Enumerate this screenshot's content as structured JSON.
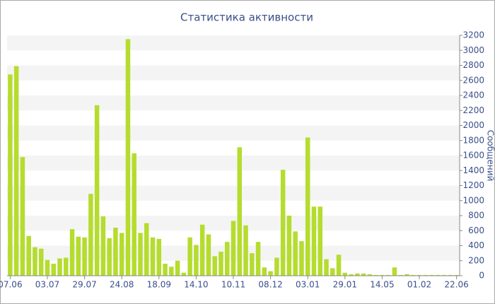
{
  "chart_data": {
    "type": "bar",
    "title": "Статистика активности",
    "y_label": "Сообщений",
    "categories": [
      "07.06",
      null,
      null,
      null,
      null,
      null,
      "03.07",
      null,
      null,
      null,
      null,
      null,
      "29.07",
      null,
      null,
      null,
      null,
      null,
      "24.08",
      null,
      null,
      null,
      null,
      null,
      "18.09",
      null,
      null,
      null,
      null,
      null,
      "14.10",
      null,
      null,
      null,
      null,
      null,
      "10.11",
      null,
      null,
      null,
      null,
      null,
      "08.12",
      null,
      null,
      null,
      null,
      null,
      "03.01",
      null,
      null,
      null,
      null,
      null,
      "29.01",
      null,
      null,
      null,
      null,
      null,
      "14.05",
      null,
      null,
      null,
      null,
      null,
      "01.02",
      null,
      null,
      null,
      null,
      null,
      "22.06"
    ],
    "values": [
      2680,
      2790,
      1580,
      530,
      380,
      360,
      210,
      160,
      230,
      240,
      620,
      520,
      510,
      1090,
      2270,
      790,
      500,
      640,
      570,
      3150,
      1630,
      570,
      700,
      510,
      490,
      160,
      120,
      200,
      40,
      510,
      410,
      680,
      550,
      260,
      320,
      450,
      730,
      1710,
      670,
      300,
      450,
      110,
      60,
      240,
      1410,
      800,
      590,
      460,
      1840,
      920,
      920,
      220,
      100,
      280,
      40,
      20,
      30,
      30,
      20,
      10,
      10,
      10,
      110,
      10,
      20,
      10,
      10,
      10,
      10,
      10,
      10,
      10,
      10
    ],
    "color": "#b5dc2e",
    "ylim": [
      0,
      3200
    ],
    "yticks": [
      0,
      200,
      400,
      600,
      800,
      1000,
      1200,
      1400,
      1600,
      1800,
      2000,
      2200,
      2400,
      2600,
      2800,
      3000,
      3200
    ],
    "grid": true
  }
}
